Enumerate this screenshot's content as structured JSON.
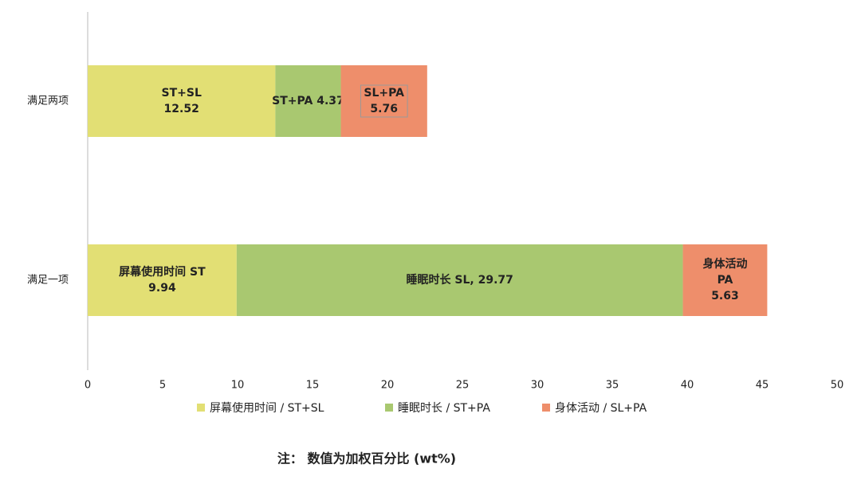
{
  "chart_data": {
    "type": "stacked-bar-horizontal",
    "categories": [
      "满足两项",
      "满足一项"
    ],
    "series": [
      {
        "name": "屏幕使用时间 / ST+SL",
        "color": "#e2df74",
        "values": [
          12.52,
          9.94
        ],
        "value_labels": [
          [
            "ST+SL",
            "12.52"
          ],
          [
            "屏幕使用时间 ST",
            "9.94"
          ]
        ]
      },
      {
        "name": "睡眠时长 / ST+PA",
        "color": "#a9c870",
        "values": [
          4.37,
          29.77
        ],
        "value_labels": [
          [
            "ST+PA 4.37"
          ],
          [
            "睡眠时长 SL, 29.77"
          ]
        ]
      },
      {
        "name": "身体活动 / SL+PA",
        "color": "#ee8e6b",
        "values": [
          5.76,
          5.63
        ],
        "value_labels": [
          [
            "SL+PA",
            "5.76"
          ],
          [
            "身体活动",
            "PA",
            "5.63"
          ]
        ]
      }
    ],
    "xlim": [
      0,
      50
    ],
    "xticks": [
      0,
      5,
      10,
      15,
      20,
      25,
      30,
      35,
      40,
      45,
      50
    ],
    "legend": "bottom",
    "note": "注： 数值为加权百分比 (wt%)"
  }
}
